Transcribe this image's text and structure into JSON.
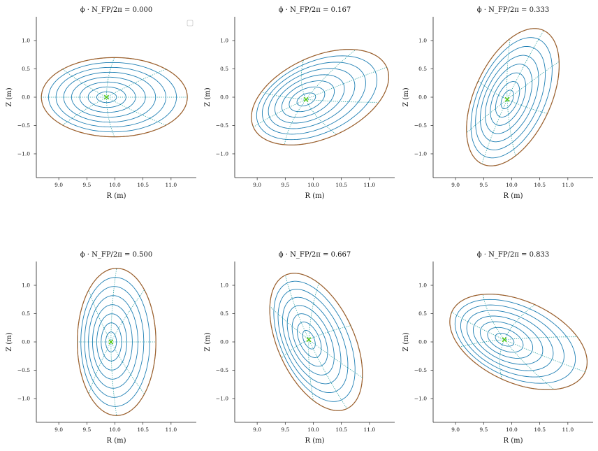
{
  "chart_data": [
    {
      "type": "line",
      "title": "ϕ · N_FP/2π = 0.000",
      "xlabel": "R (m)",
      "ylabel": "Z (m)",
      "xlim": [
        8.6,
        11.45
      ],
      "ylim": [
        -1.42,
        1.42
      ],
      "xticks": [
        "9.0",
        "9.5",
        "10.0",
        "10.5",
        "11.0"
      ],
      "yticks": [
        "1.0",
        "0.5",
        "0.0",
        "−0.5",
        "−1.0"
      ],
      "legend": "empty legend box, top-right",
      "surfaces": {
        "count": 9,
        "color": "#1f7fb4"
      },
      "boundary": {
        "color": "#a0602a",
        "r0": 9.99,
        "z0": 0.0,
        "a": 1.3,
        "b": 0.7,
        "angle_deg": 0
      },
      "magnetic_axis": {
        "r": 9.85,
        "z": 0.0,
        "color": "#55cc00"
      },
      "poloidal_lines": {
        "count": 4,
        "color": "#1a9a9a",
        "style": "dotted"
      }
    },
    {
      "type": "line",
      "title": "ϕ · N_FP/2π = 0.167",
      "xlabel": "R (m)",
      "ylabel": "Z (m)",
      "xlim": [
        8.6,
        11.45
      ],
      "ylim": [
        -1.42,
        1.42
      ],
      "xticks": [
        "9.0",
        "9.5",
        "10.0",
        "10.5",
        "11.0"
      ],
      "yticks": [
        "1.0",
        "0.5",
        "0.0",
        "−0.5",
        "−1.0"
      ],
      "surfaces": {
        "count": 9,
        "color": "#1f7fb4"
      },
      "boundary": {
        "color": "#a0602a",
        "r0": 10.12,
        "z0": 0.0,
        "a": 1.3,
        "b": 0.72,
        "angle_deg": 24
      },
      "magnetic_axis": {
        "r": 9.87,
        "z": -0.04,
        "color": "#55cc00"
      },
      "poloidal_lines": {
        "count": 4,
        "color": "#1a9a9a",
        "style": "dotted"
      }
    },
    {
      "type": "line",
      "title": "ϕ · N_FP/2π = 0.333",
      "xlabel": "R (m)",
      "ylabel": "Z (m)",
      "xlim": [
        8.6,
        11.45
      ],
      "ylim": [
        -1.42,
        1.42
      ],
      "xticks": [
        "9.0",
        "9.5",
        "10.0",
        "10.5",
        "11.0"
      ],
      "yticks": [
        "1.0",
        "0.5",
        "0.0",
        "−0.5",
        "−1.0"
      ],
      "surfaces": {
        "count": 9,
        "color": "#1f7fb4"
      },
      "boundary": {
        "color": "#a0602a",
        "r0": 10.02,
        "z0": 0.0,
        "a": 1.3,
        "b": 0.68,
        "angle_deg": 65
      },
      "magnetic_axis": {
        "r": 9.92,
        "z": -0.04,
        "color": "#55cc00"
      },
      "poloidal_lines": {
        "count": 4,
        "color": "#1a9a9a",
        "style": "dotted"
      }
    },
    {
      "type": "line",
      "title": "ϕ · N_FP/2π = 0.500",
      "xlabel": "R (m)",
      "ylabel": "Z (m)",
      "xlim": [
        8.6,
        11.45
      ],
      "ylim": [
        -1.42,
        1.42
      ],
      "xticks": [
        "9.0",
        "9.5",
        "10.0",
        "10.5",
        "11.0"
      ],
      "yticks": [
        "1.0",
        "0.5",
        "0.0",
        "−0.5",
        "−1.0"
      ],
      "surfaces": {
        "count": 9,
        "color": "#1f7fb4"
      },
      "boundary": {
        "color": "#a0602a",
        "r0": 10.03,
        "z0": 0.0,
        "a": 1.3,
        "b": 0.7,
        "angle_deg": 90
      },
      "magnetic_axis": {
        "r": 9.93,
        "z": 0.0,
        "color": "#55cc00"
      },
      "poloidal_lines": {
        "count": 4,
        "color": "#1a9a9a",
        "style": "dotted"
      }
    },
    {
      "type": "line",
      "title": "ϕ · N_FP/2π = 0.667",
      "xlabel": "R (m)",
      "ylabel": "Z (m)",
      "xlim": [
        8.6,
        11.45
      ],
      "ylim": [
        -1.42,
        1.42
      ],
      "xticks": [
        "9.0",
        "9.5",
        "10.0",
        "10.5",
        "11.0"
      ],
      "yticks": [
        "1.0",
        "0.5",
        "0.0",
        "−0.5",
        "−1.0"
      ],
      "surfaces": {
        "count": 9,
        "color": "#1f7fb4"
      },
      "boundary": {
        "color": "#a0602a",
        "r0": 10.05,
        "z0": 0.0,
        "a": 1.3,
        "b": 0.68,
        "angle_deg": 115
      },
      "magnetic_axis": {
        "r": 9.92,
        "z": 0.04,
        "color": "#55cc00"
      },
      "poloidal_lines": {
        "count": 4,
        "color": "#1a9a9a",
        "style": "dotted"
      }
    },
    {
      "type": "line",
      "title": "ϕ · N_FP/2π = 0.833",
      "xlabel": "R (m)",
      "ylabel": "Z (m)",
      "xlim": [
        8.6,
        11.45
      ],
      "ylim": [
        -1.42,
        1.42
      ],
      "xticks": [
        "9.0",
        "9.5",
        "10.0",
        "10.5",
        "11.0"
      ],
      "yticks": [
        "1.0",
        "0.5",
        "0.0",
        "−0.5",
        "−1.0"
      ],
      "surfaces": {
        "count": 9,
        "color": "#1f7fb4"
      },
      "boundary": {
        "color": "#a0602a",
        "r0": 10.12,
        "z0": 0.0,
        "a": 1.3,
        "b": 0.72,
        "angle_deg": 156
      },
      "magnetic_axis": {
        "r": 9.87,
        "z": 0.04,
        "color": "#55cc00"
      },
      "poloidal_lines": {
        "count": 4,
        "color": "#1a9a9a",
        "style": "dotted"
      }
    }
  ]
}
